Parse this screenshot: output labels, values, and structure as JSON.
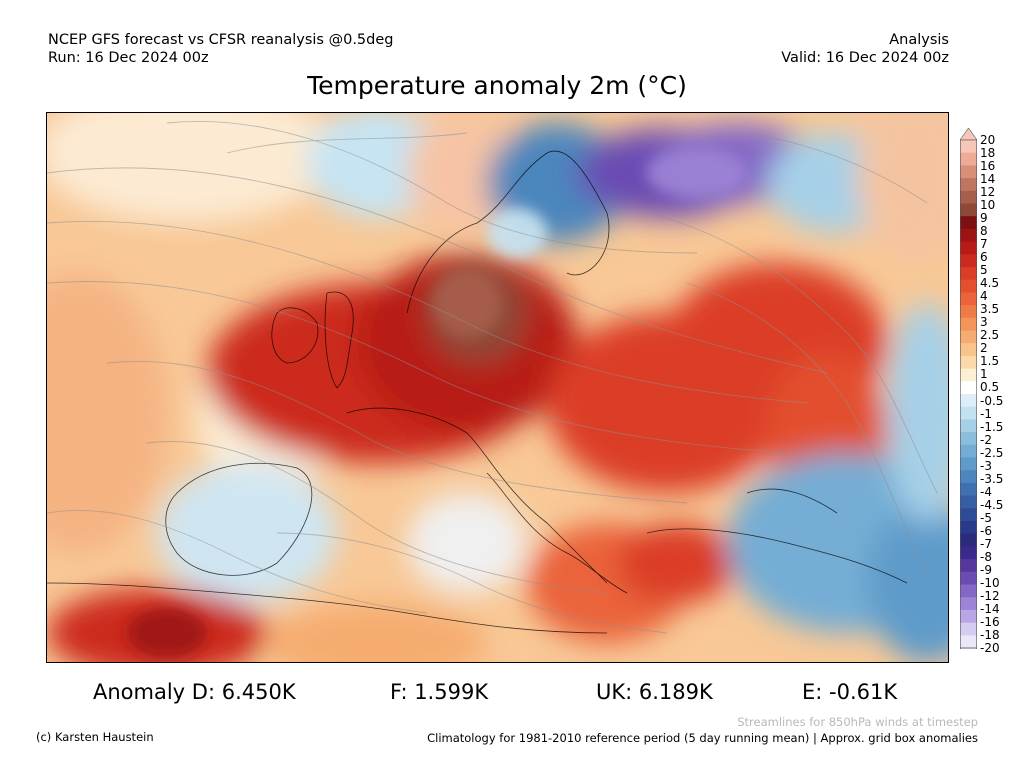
{
  "header": {
    "model_line": "NCEP GFS forecast vs CFSR reanalysis @0.5deg",
    "run_line": "Run: 16 Dec 2024 00z",
    "type_line": "Analysis",
    "valid_line": "Valid: 16 Dec 2024 00z"
  },
  "title": "Temperature anomaly 2m (°C)",
  "colorbar": {
    "labels": [
      "20",
      "18",
      "16",
      "14",
      "12",
      "10",
      "9",
      "8",
      "7",
      "6",
      "5",
      "4.5",
      "4",
      "3.5",
      "3",
      "2.5",
      "2",
      "1.5",
      "1",
      "0.5",
      "-0.5",
      "-1",
      "-1.5",
      "-2",
      "-2.5",
      "-3",
      "-3.5",
      "-4",
      "-4.5",
      "-5",
      "-6",
      "-7",
      "-8",
      "-9",
      "-10",
      "-12",
      "-14",
      "-16",
      "-18",
      "-20"
    ],
    "colors": [
      "#f6c6b8",
      "#eeac97",
      "#d98f77",
      "#c07562",
      "#a85e4d",
      "#8e4838",
      "#7d1010",
      "#9c1313",
      "#b81a17",
      "#cc2a1e",
      "#db3d27",
      "#e34f2f",
      "#ea633a",
      "#f07b47",
      "#f4945a",
      "#f6ac70",
      "#f8c48c",
      "#fadaaa",
      "#fcefd2",
      "#ffffff",
      "#ddeef8",
      "#c2e1f1",
      "#a6d0e8",
      "#8bbedd",
      "#74add4",
      "#5e9bca",
      "#4c86bd",
      "#3f71b0",
      "#355ea3",
      "#2d4b96",
      "#283a89",
      "#2b2a7c",
      "#3b2a8c",
      "#55379e",
      "#6b4cb3",
      "#8467c6",
      "#9d84d6",
      "#b9a6e4",
      "#d6cbf0",
      "#ece7f8"
    ]
  },
  "stats": {
    "d": "Anomaly D: 6.450K",
    "f": "F: 1.599K",
    "uk": "UK: 6.189K",
    "e": "E: -0.61K"
  },
  "footer": {
    "streamlines": "Streamlines for 850hPa winds at timestep",
    "credit": "(c) Karsten Haustein",
    "climatology": "Climatology for 1981-2010 reference period (5 day running mean) | Approx. grid box anomalies"
  }
}
